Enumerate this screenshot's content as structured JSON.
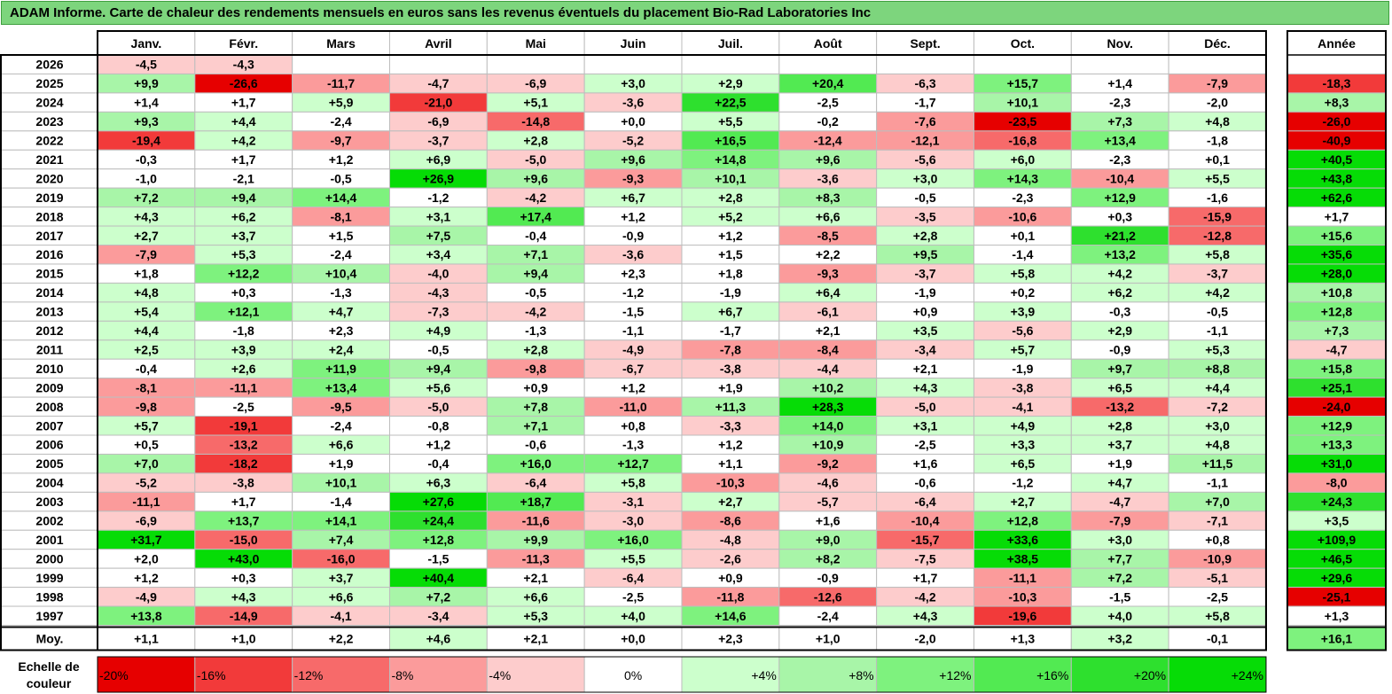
{
  "title": "ADAM Informe. Carte de chaleur des rendements mensuels en euros sans les revenus éventuels du placement Bio-Rad Laboratories Inc",
  "colors": {
    "scale": [
      "#e60000",
      "#f23a3a",
      "#f76a6a",
      "#fb9b9b",
      "#fdcccc",
      "#ffffff",
      "#ccffcc",
      "#a8f5a8",
      "#7ef27e",
      "#52ea52",
      "#2ee02e",
      "#06dc06"
    ],
    "border": "#000000",
    "grid": "#bdbdbd",
    "title_bg": "#7dd57d"
  },
  "chart_data": {
    "type": "heatmap",
    "title": "ADAM Informe. Carte de chaleur des rendements mensuels en euros sans les revenus éventuels du placement Bio-Rad Laboratories Inc",
    "months": [
      "Janv.",
      "Févr.",
      "Mars",
      "Avril",
      "Mai",
      "Juin",
      "Juil.",
      "Août",
      "Sept.",
      "Oct.",
      "Nov.",
      "Déc."
    ],
    "year_header": "Année",
    "rows": [
      {
        "label": "2026",
        "values": [
          "-4,5",
          "-4,3",
          "",
          "",
          "",
          "",
          "",
          "",
          "",
          "",
          "",
          ""
        ],
        "year": ""
      },
      {
        "label": "2025",
        "values": [
          "+9,9",
          "-26,6",
          "-11,7",
          "-4,7",
          "-6,9",
          "+3,0",
          "+2,9",
          "+20,4",
          "-6,3",
          "+15,7",
          "+1,4",
          "-7,9"
        ],
        "year": "-18,3"
      },
      {
        "label": "2024",
        "values": [
          "+1,4",
          "+1,7",
          "+5,9",
          "-21,0",
          "+5,1",
          "-3,6",
          "+22,5",
          "-2,5",
          "-1,7",
          "+10,1",
          "-2,3",
          "-2,0"
        ],
        "year": "+8,3"
      },
      {
        "label": "2023",
        "values": [
          "+9,3",
          "+4,4",
          "-2,4",
          "-6,9",
          "-14,8",
          "+0,0",
          "+5,5",
          "-0,2",
          "-7,6",
          "-23,5",
          "+7,3",
          "+4,8"
        ],
        "year": "-26,0"
      },
      {
        "label": "2022",
        "values": [
          "-19,4",
          "+4,2",
          "-9,7",
          "-3,7",
          "+2,8",
          "-5,2",
          "+16,5",
          "-12,4",
          "-12,1",
          "-16,8",
          "+13,4",
          "-1,8"
        ],
        "year": "-40,9"
      },
      {
        "label": "2021",
        "values": [
          "-0,3",
          "+1,7",
          "+1,2",
          "+6,9",
          "-5,0",
          "+9,6",
          "+14,8",
          "+9,6",
          "-5,6",
          "+6,0",
          "-2,3",
          "+0,1"
        ],
        "year": "+40,5"
      },
      {
        "label": "2020",
        "values": [
          "-1,0",
          "-2,1",
          "-0,5",
          "+26,9",
          "+9,6",
          "-9,3",
          "+10,1",
          "-3,6",
          "+3,0",
          "+14,3",
          "-10,4",
          "+5,5"
        ],
        "year": "+43,8"
      },
      {
        "label": "2019",
        "values": [
          "+7,2",
          "+9,4",
          "+14,4",
          "-1,2",
          "-4,2",
          "+6,7",
          "+2,8",
          "+8,3",
          "-0,5",
          "-2,3",
          "+12,9",
          "-1,6"
        ],
        "year": "+62,6"
      },
      {
        "label": "2018",
        "values": [
          "+4,3",
          "+6,2",
          "-8,1",
          "+3,1",
          "+17,4",
          "+1,2",
          "+5,2",
          "+6,6",
          "-3,5",
          "-10,6",
          "+0,3",
          "-15,9"
        ],
        "year": "+1,7"
      },
      {
        "label": "2017",
        "values": [
          "+2,7",
          "+3,7",
          "+1,5",
          "+7,5",
          "-0,4",
          "-0,9",
          "+1,2",
          "-8,5",
          "+2,8",
          "+0,1",
          "+21,2",
          "-12,8"
        ],
        "year": "+15,6"
      },
      {
        "label": "2016",
        "values": [
          "-7,9",
          "+5,3",
          "-2,4",
          "+3,4",
          "+7,1",
          "-3,6",
          "+1,5",
          "+2,2",
          "+9,5",
          "-1,4",
          "+13,2",
          "+5,8"
        ],
        "year": "+35,6"
      },
      {
        "label": "2015",
        "values": [
          "+1,8",
          "+12,2",
          "+10,4",
          "-4,0",
          "+9,4",
          "+2,3",
          "+1,8",
          "-9,3",
          "-3,7",
          "+5,8",
          "+4,2",
          "-3,7"
        ],
        "year": "+28,0"
      },
      {
        "label": "2014",
        "values": [
          "+4,8",
          "+0,3",
          "-1,3",
          "-4,3",
          "-0,5",
          "-1,2",
          "-1,9",
          "+6,4",
          "-1,9",
          "+0,2",
          "+6,2",
          "+4,2"
        ],
        "year": "+10,8"
      },
      {
        "label": "2013",
        "values": [
          "+5,4",
          "+12,1",
          "+4,7",
          "-7,3",
          "-4,2",
          "-1,5",
          "+6,7",
          "-6,1",
          "+0,9",
          "+3,9",
          "-0,3",
          "-0,5"
        ],
        "year": "+12,8"
      },
      {
        "label": "2012",
        "values": [
          "+4,4",
          "-1,8",
          "+2,3",
          "+4,9",
          "-1,3",
          "-1,1",
          "-1,7",
          "+2,1",
          "+3,5",
          "-5,6",
          "+2,9",
          "-1,1"
        ],
        "year": "+7,3"
      },
      {
        "label": "2011",
        "values": [
          "+2,5",
          "+3,9",
          "+2,4",
          "-0,5",
          "+2,8",
          "-4,9",
          "-7,8",
          "-8,4",
          "-3,4",
          "+5,7",
          "-0,9",
          "+5,3"
        ],
        "year": "-4,7"
      },
      {
        "label": "2010",
        "values": [
          "-0,4",
          "+2,6",
          "+11,9",
          "+9,4",
          "-9,8",
          "-6,7",
          "-3,8",
          "-4,4",
          "+2,1",
          "-1,9",
          "+9,7",
          "+8,8"
        ],
        "year": "+15,8"
      },
      {
        "label": "2009",
        "values": [
          "-8,1",
          "-11,1",
          "+13,4",
          "+5,6",
          "+0,9",
          "+1,2",
          "+1,9",
          "+10,2",
          "+4,3",
          "-3,8",
          "+6,5",
          "+4,4"
        ],
        "year": "+25,1"
      },
      {
        "label": "2008",
        "values": [
          "-9,8",
          "-2,5",
          "-9,5",
          "-5,0",
          "+7,8",
          "-11,0",
          "+11,3",
          "+28,3",
          "-5,0",
          "-4,1",
          "-13,2",
          "-7,2"
        ],
        "year": "-24,0"
      },
      {
        "label": "2007",
        "values": [
          "+5,7",
          "-19,1",
          "-2,4",
          "-0,8",
          "+7,1",
          "+0,8",
          "-3,3",
          "+14,0",
          "+3,1",
          "+4,9",
          "+2,8",
          "+3,0"
        ],
        "year": "+12,9"
      },
      {
        "label": "2006",
        "values": [
          "+0,5",
          "-13,2",
          "+6,6",
          "+1,2",
          "-0,6",
          "-1,3",
          "+1,2",
          "+10,9",
          "-2,5",
          "+3,3",
          "+3,7",
          "+4,8"
        ],
        "year": "+13,3"
      },
      {
        "label": "2005",
        "values": [
          "+7,0",
          "-18,2",
          "+1,9",
          "-0,4",
          "+16,0",
          "+12,7",
          "+1,1",
          "-9,2",
          "+1,6",
          "+6,5",
          "+1,9",
          "+11,5"
        ],
        "year": "+31,0"
      },
      {
        "label": "2004",
        "values": [
          "-5,2",
          "-3,8",
          "+10,1",
          "+6,3",
          "-6,4",
          "+5,8",
          "-10,3",
          "-4,6",
          "-0,6",
          "-1,2",
          "+4,7",
          "-1,1"
        ],
        "year": "-8,0"
      },
      {
        "label": "2003",
        "values": [
          "-11,1",
          "+1,7",
          "-1,4",
          "+27,6",
          "+18,7",
          "-3,1",
          "+2,7",
          "-5,7",
          "-6,4",
          "+2,7",
          "-4,7",
          "+7,0"
        ],
        "year": "+24,3"
      },
      {
        "label": "2002",
        "values": [
          "-6,9",
          "+13,7",
          "+14,1",
          "+24,4",
          "-11,6",
          "-3,0",
          "-8,6",
          "+1,6",
          "-10,4",
          "+12,8",
          "-7,9",
          "-7,1"
        ],
        "year": "+3,5"
      },
      {
        "label": "2001",
        "values": [
          "+31,7",
          "-15,0",
          "+7,4",
          "+12,8",
          "+9,9",
          "+16,0",
          "-4,8",
          "+9,0",
          "-15,7",
          "+33,6",
          "+3,0",
          "+0,8"
        ],
        "year": "+109,9"
      },
      {
        "label": "2000",
        "values": [
          "+2,0",
          "+43,0",
          "-16,0",
          "-1,5",
          "-11,3",
          "+5,5",
          "-2,6",
          "+8,2",
          "-7,5",
          "+38,5",
          "+7,7",
          "-10,9"
        ],
        "year": "+46,5"
      },
      {
        "label": "1999",
        "values": [
          "+1,2",
          "+0,3",
          "+3,7",
          "+40,4",
          "+2,1",
          "-6,4",
          "+0,9",
          "-0,9",
          "+1,7",
          "-11,1",
          "+7,2",
          "-5,1"
        ],
        "year": "+29,6"
      },
      {
        "label": "1998",
        "values": [
          "-4,9",
          "+4,3",
          "+6,6",
          "+7,2",
          "+6,6",
          "-2,5",
          "-11,8",
          "-12,6",
          "-4,2",
          "-10,3",
          "-1,5",
          "-2,5"
        ],
        "year": "-25,1"
      },
      {
        "label": "1997",
        "values": [
          "+13,8",
          "-14,9",
          "-4,1",
          "-3,4",
          "+5,3",
          "+4,0",
          "+14,6",
          "-2,4",
          "+4,3",
          "-19,6",
          "+4,0",
          "+5,8"
        ],
        "year": "+1,3"
      }
    ],
    "average": {
      "label": "Moy.",
      "values": [
        "+1,1",
        "+1,0",
        "+2,2",
        "+4,6",
        "+2,1",
        "+0,0",
        "+2,3",
        "+1,0",
        "-2,0",
        "+1,3",
        "+3,2",
        "-0,1"
      ],
      "year": "+16,1"
    },
    "scale_label": "Echelle de couleur",
    "scale_values": [
      "-20%",
      "-16%",
      "-12%",
      "-8%",
      "-4%",
      "0%",
      "+4%",
      "+8%",
      "+12%",
      "+16%",
      "+20%",
      "+24%"
    ]
  }
}
